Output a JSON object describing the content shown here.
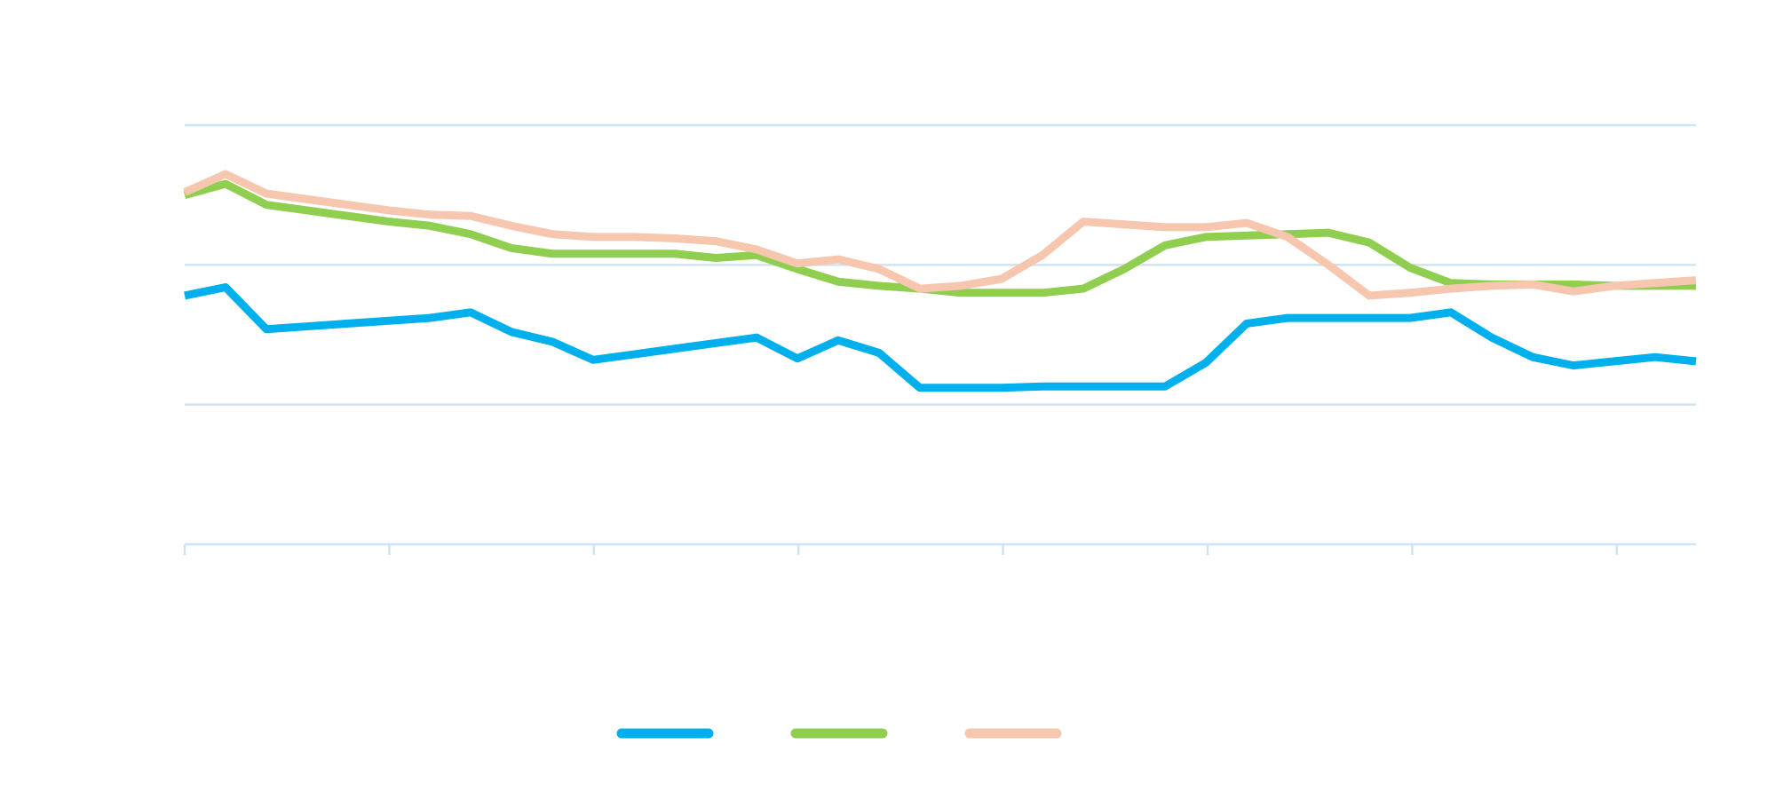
{
  "chart_data": {
    "type": "line",
    "title": "",
    "xlabel": "",
    "ylabel": "",
    "x": [
      0,
      1,
      2,
      3,
      4,
      5,
      6,
      7,
      8,
      9,
      10,
      11,
      12,
      13,
      14,
      15,
      16,
      17,
      18,
      19,
      20,
      21,
      22,
      23,
      24,
      25,
      26,
      27,
      28,
      29,
      30,
      31,
      32,
      33,
      34,
      35,
      36,
      37
    ],
    "ylim": [
      0,
      3
    ],
    "grid": true,
    "legend_position": "bottom",
    "series": [
      {
        "color": "#00b0ec",
        "values": [
          1.78,
          1.84,
          1.54,
          1.56,
          1.58,
          1.6,
          1.62,
          1.66,
          1.52,
          1.45,
          1.32,
          1.36,
          1.4,
          1.44,
          1.48,
          1.33,
          1.46,
          1.37,
          1.12,
          1.12,
          1.12,
          1.13,
          1.13,
          1.13,
          1.13,
          1.3,
          1.58,
          1.62,
          1.62,
          1.62,
          1.62,
          1.66,
          1.48,
          1.34,
          1.28,
          1.31,
          1.34,
          1.31
        ]
      },
      {
        "color": "#8fce4f",
        "values": [
          2.5,
          2.58,
          2.43,
          2.39,
          2.35,
          2.31,
          2.28,
          2.22,
          2.12,
          2.08,
          2.08,
          2.08,
          2.08,
          2.05,
          2.07,
          1.97,
          1.88,
          1.85,
          1.83,
          1.8,
          1.8,
          1.8,
          1.83,
          1.97,
          2.14,
          2.2,
          2.21,
          2.22,
          2.23,
          2.16,
          1.98,
          1.87,
          1.86,
          1.86,
          1.86,
          1.85,
          1.85,
          1.85
        ]
      },
      {
        "color": "#f6c6ae",
        "values": [
          2.52,
          2.65,
          2.51,
          2.47,
          2.43,
          2.39,
          2.36,
          2.35,
          2.28,
          2.22,
          2.2,
          2.2,
          2.19,
          2.17,
          2.11,
          2.01,
          2.04,
          1.97,
          1.83,
          1.85,
          1.9,
          2.07,
          2.31,
          2.29,
          2.27,
          2.27,
          2.3,
          2.2,
          2.0,
          1.78,
          1.8,
          1.83,
          1.85,
          1.86,
          1.81,
          1.85,
          1.87,
          1.89
        ]
      }
    ]
  }
}
